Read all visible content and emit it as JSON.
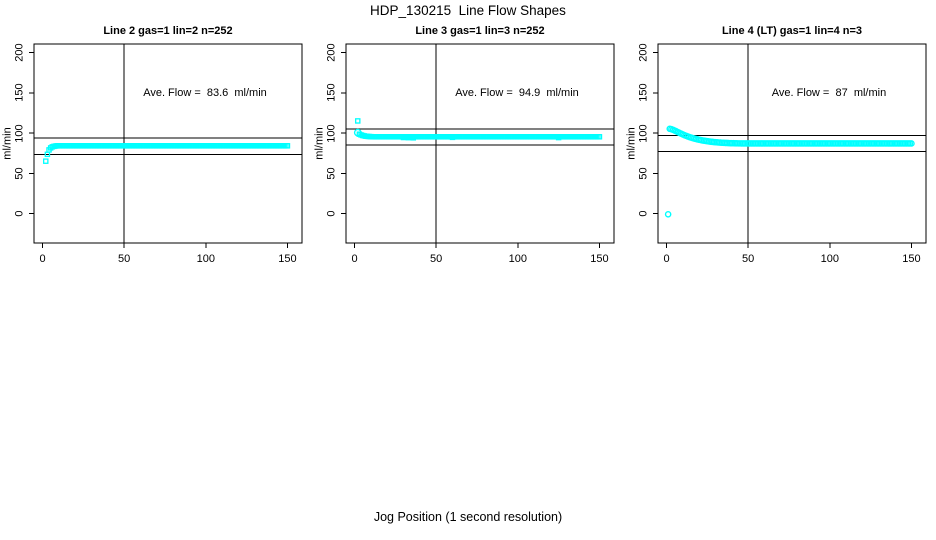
{
  "page": {
    "title": "HDP_130215  Line Flow Shapes",
    "xlabel_bottom": "Jog Position (1 second resolution)",
    "background": "#FFFFFF",
    "axis_color": "#000000",
    "point_color": "#00FFFF"
  },
  "chart_data": [
    {
      "type": "scatter",
      "title": "Line 2 gas=1 lin=2 n=252",
      "ylabel": "ml/min",
      "annotation": "Ave. Flow =  83.6  ml/min",
      "ave_flow_ml_min": 83.6,
      "xticks": [
        0,
        50,
        100,
        150
      ],
      "yticks": [
        0,
        50,
        100,
        150,
        200
      ],
      "xlim": [
        -5,
        160
      ],
      "ylim": [
        -32,
        212
      ],
      "grid": false,
      "vline_x": 50,
      "hlines": [
        93.6,
        73.6
      ],
      "marker": {
        "shape": "square",
        "size": 4.2,
        "color": "#00FFFF"
      },
      "points": [
        [
          2,
          65
        ],
        [
          3,
          73.5
        ],
        [
          4,
          79
        ],
        [
          5,
          81.5
        ],
        [
          6,
          82.8
        ],
        [
          7,
          83.4
        ],
        [
          8,
          83.8
        ]
      ],
      "plateau": {
        "x_start": 9,
        "x_end": 150,
        "step": 1,
        "y": 84.1
      }
    },
    {
      "type": "scatter",
      "title": "Line 3 gas=1 lin=3 n=252",
      "ylabel": "ml/min",
      "annotation": "Ave. Flow =  94.9  ml/min",
      "ave_flow_ml_min": 94.9,
      "xticks": [
        0,
        50,
        100,
        150
      ],
      "yticks": [
        0,
        50,
        100,
        150,
        200
      ],
      "xlim": [
        -5,
        160
      ],
      "ylim": [
        -32,
        212
      ],
      "grid": false,
      "vline_x": 50,
      "hlines": [
        104.9,
        84.9
      ],
      "marker": {
        "shape": "square",
        "size": 4.2,
        "color": "#00FFFF"
      },
      "extra_markers": [
        {
          "x": 2,
          "y": 100.5,
          "shape": "circle",
          "size": 6.4
        }
      ],
      "points": [
        [
          2,
          115
        ],
        [
          3,
          98.5
        ],
        [
          4,
          97.6
        ],
        [
          5,
          96.9
        ],
        [
          6,
          96.4
        ],
        [
          7,
          96
        ],
        [
          8,
          95.8
        ],
        [
          9,
          95.6
        ],
        [
          10,
          95.5
        ],
        [
          30,
          94.4
        ],
        [
          33,
          94.2
        ],
        [
          36,
          94
        ],
        [
          60,
          94.6
        ],
        [
          125,
          94.3
        ]
      ],
      "plateau": {
        "x_start": 11,
        "x_end": 150,
        "step": 1,
        "y": 95.3
      }
    },
    {
      "type": "scatter",
      "title": "Line 4 (LT) gas=1 lin=4 n=3",
      "ylabel": "ml/min",
      "annotation": "Ave. Flow =  87  ml/min",
      "ave_flow_ml_min": 87,
      "xticks": [
        0,
        50,
        100,
        150
      ],
      "yticks": [
        0,
        50,
        100,
        150,
        200
      ],
      "xlim": [
        -5,
        160
      ],
      "ylim": [
        -32,
        212
      ],
      "grid": false,
      "vline_x": 50,
      "hlines": [
        97,
        77
      ],
      "marker": {
        "shape": "circle",
        "size": 5.2,
        "color": "#00FFFF"
      },
      "points": [
        [
          1,
          -1
        ],
        [
          2,
          105.2
        ],
        [
          3,
          104.7
        ],
        [
          4,
          104
        ],
        [
          5,
          103.1
        ],
        [
          6,
          102.1
        ],
        [
          7,
          101.1
        ],
        [
          8,
          100.1
        ],
        [
          9,
          99.1
        ],
        [
          10,
          98.2
        ],
        [
          11,
          97.3
        ],
        [
          12,
          96.5
        ],
        [
          13,
          95.7
        ],
        [
          14,
          95
        ],
        [
          15,
          94.3
        ],
        [
          16,
          93.7
        ],
        [
          17,
          93.1
        ],
        [
          18,
          92.6
        ],
        [
          19,
          92.1
        ],
        [
          20,
          91.6
        ],
        [
          21,
          91.2
        ],
        [
          22,
          90.8
        ],
        [
          23,
          90.4
        ],
        [
          24,
          90.1
        ],
        [
          25,
          89.8
        ],
        [
          26,
          89.5
        ],
        [
          27,
          89.2
        ],
        [
          28,
          89
        ],
        [
          29,
          88.8
        ],
        [
          30,
          88.6
        ],
        [
          31,
          88.4
        ],
        [
          32,
          88.2
        ],
        [
          33,
          88.1
        ],
        [
          34,
          87.9
        ],
        [
          35,
          87.8
        ],
        [
          36,
          87.7
        ],
        [
          37,
          87.6
        ],
        [
          38,
          87.5
        ],
        [
          39,
          87.4
        ],
        [
          40,
          87.3
        ],
        [
          41,
          87.3
        ],
        [
          42,
          87.2
        ],
        [
          43,
          87.2
        ],
        [
          44,
          87.1
        ],
        [
          45,
          87.1
        ]
      ],
      "plateau": {
        "x_start": 46,
        "x_end": 150,
        "step": 1,
        "y": 87
      }
    }
  ]
}
